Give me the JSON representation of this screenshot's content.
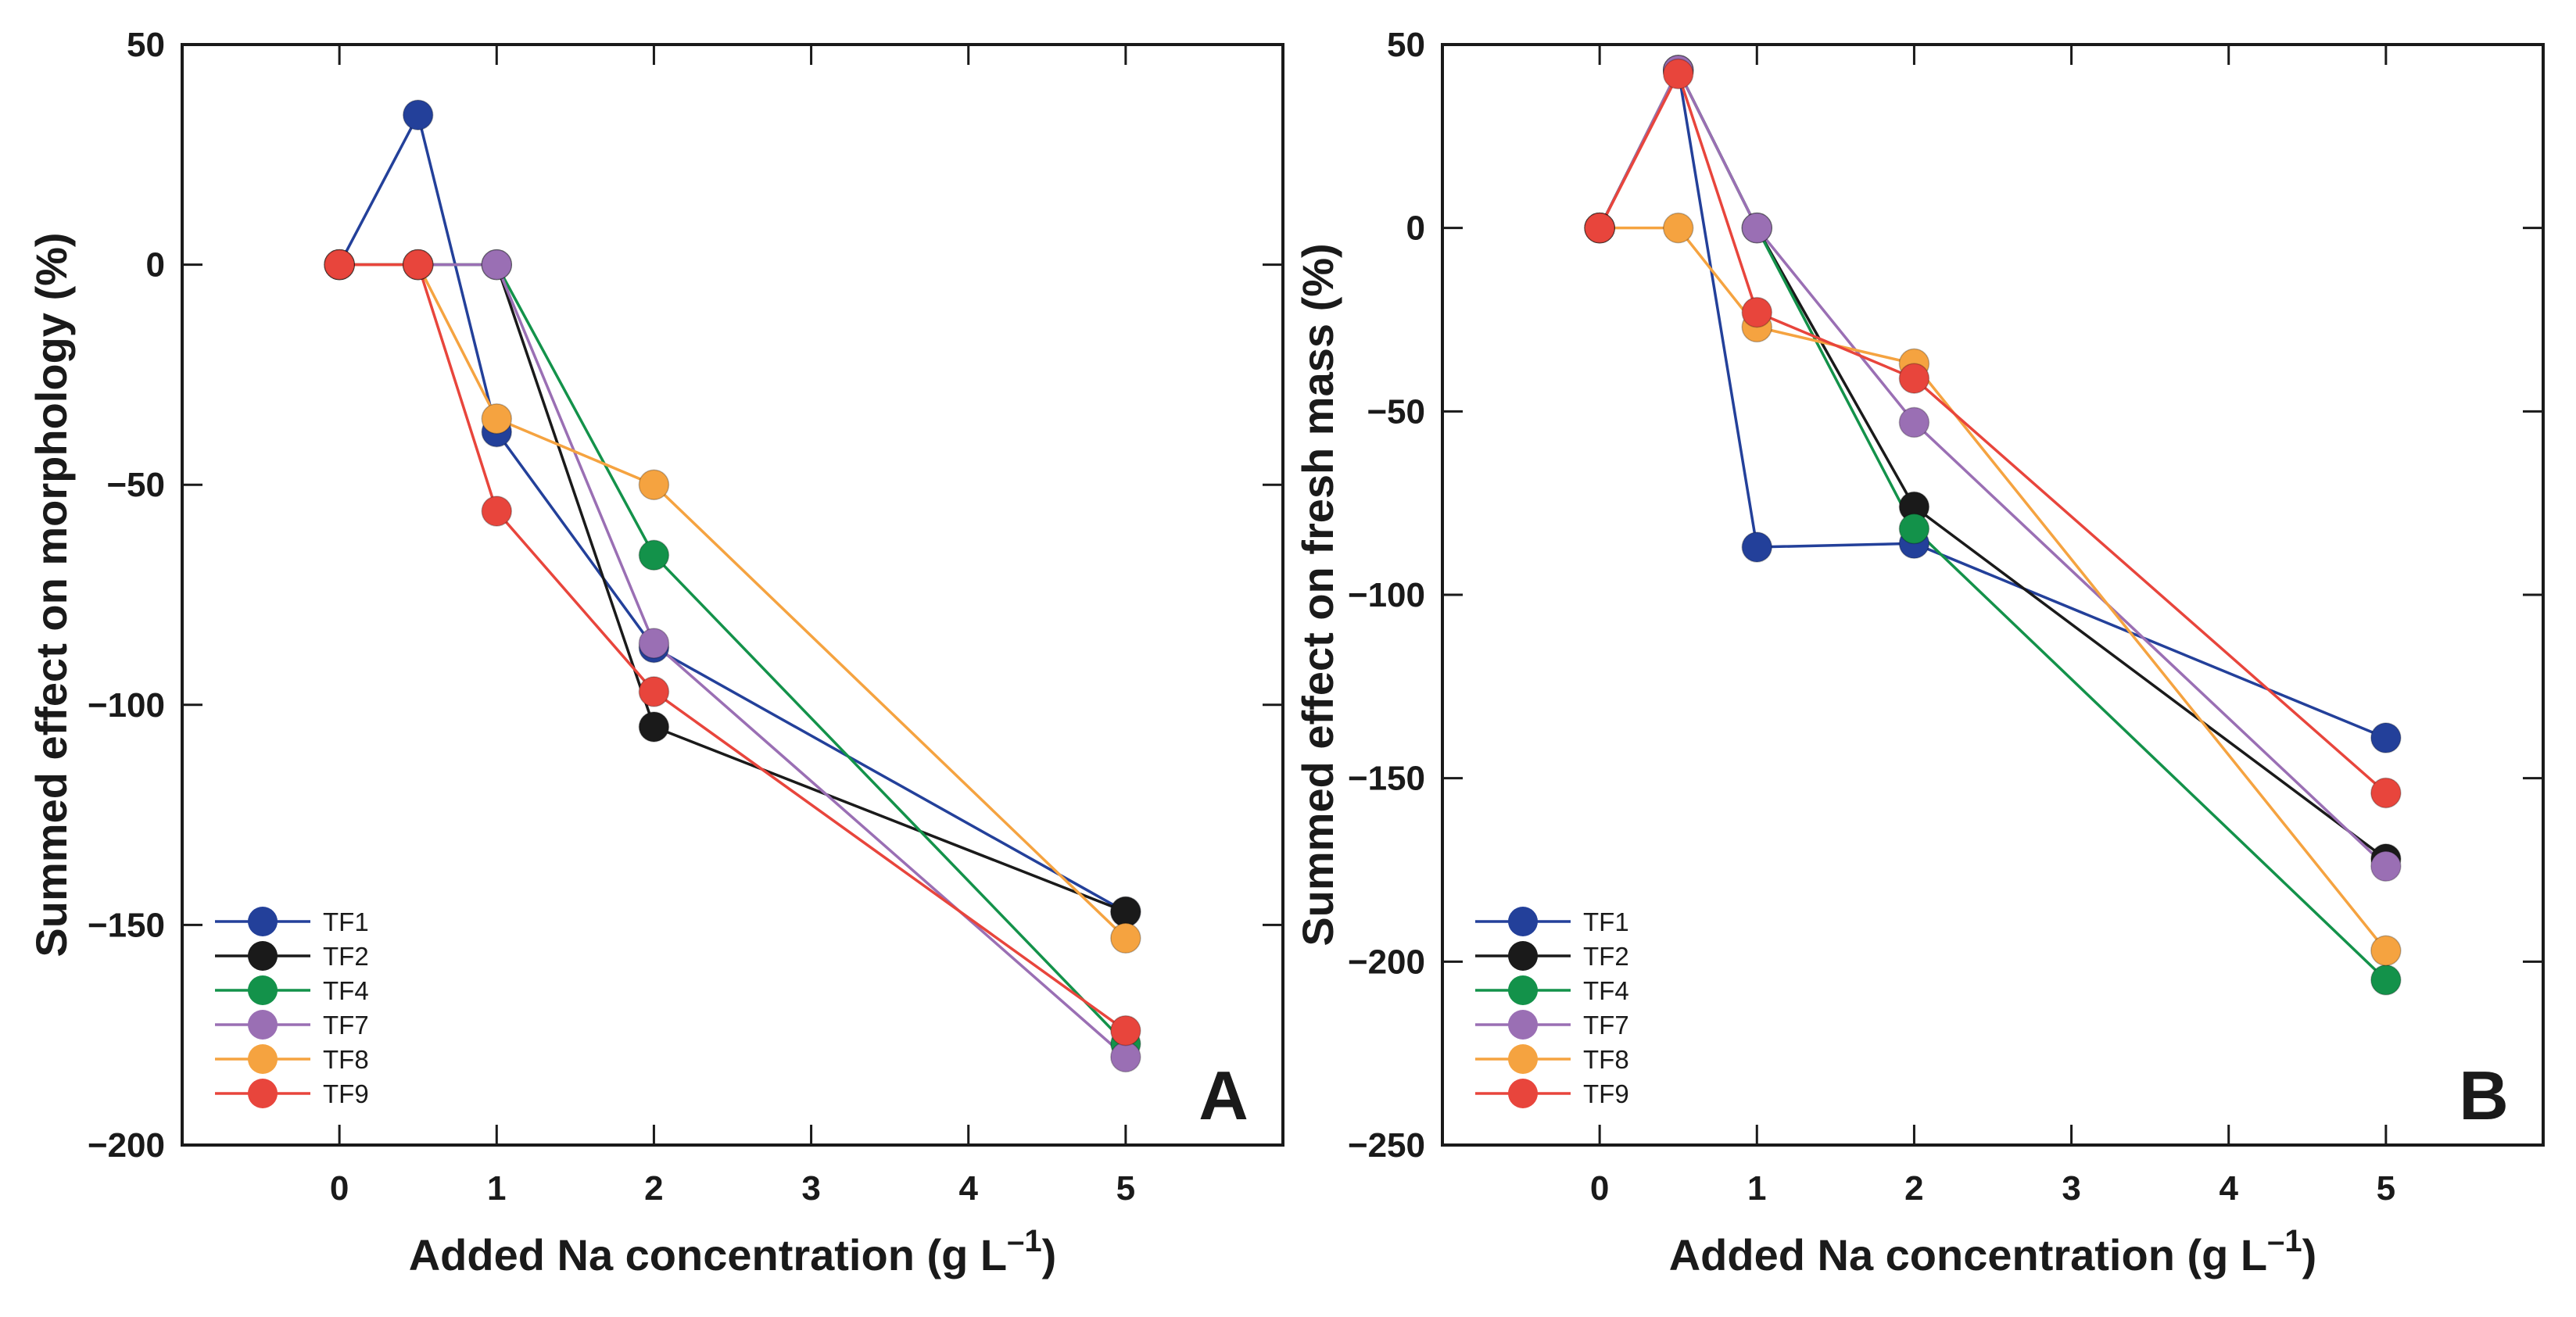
{
  "chart_data": [
    {
      "type": "line",
      "panel": "A",
      "xlabel": "Added Na concentration (g L",
      "xlabel_sup": "–1",
      "xlabel_close": ")",
      "ylabel": "Summed effect on morphology (%)",
      "xlim": [
        -1,
        6
      ],
      "ylim": [
        -200,
        50
      ],
      "xticks": [
        0,
        1,
        2,
        3,
        4,
        5
      ],
      "xtick_labels": [
        "0",
        "1",
        "2",
        "3",
        "4",
        "5"
      ],
      "yticks": [
        50,
        0,
        -50,
        -100,
        -150,
        -200
      ],
      "ytick_labels": [
        "50",
        "0",
        "−50",
        "−100",
        "−150",
        "−200"
      ],
      "legend_position": "bottom-left",
      "series": [
        {
          "name": "TF1",
          "color": "#23409a",
          "x": [
            0,
            0.5,
            1,
            2,
            5
          ],
          "values": [
            0,
            34,
            -38,
            -87,
            -147
          ]
        },
        {
          "name": "TF2",
          "color": "#1a1a1a",
          "x": [
            0,
            0.5,
            1,
            2,
            5
          ],
          "values": [
            0,
            0,
            0,
            -105,
            -147
          ]
        },
        {
          "name": "TF4",
          "color": "#13924a",
          "x": [
            0,
            0.5,
            1,
            2,
            5
          ],
          "values": [
            0,
            0,
            0,
            -66,
            -177
          ]
        },
        {
          "name": "TF7",
          "color": "#9a6fb4",
          "x": [
            0,
            0.5,
            1,
            2,
            5
          ],
          "values": [
            0,
            0,
            0,
            -86,
            -180
          ]
        },
        {
          "name": "TF8",
          "color": "#f5a340",
          "x": [
            0,
            0.5,
            1,
            2,
            5
          ],
          "values": [
            0,
            0,
            -35,
            -50,
            -153
          ]
        },
        {
          "name": "TF9",
          "color": "#e8453c",
          "x": [
            0,
            0.5,
            1,
            2,
            5
          ],
          "values": [
            0,
            0,
            -56,
            -97,
            -174
          ]
        }
      ]
    },
    {
      "type": "line",
      "panel": "B",
      "xlabel": "Added Na concentration (g L",
      "xlabel_sup": "–1",
      "xlabel_close": ")",
      "ylabel": "Summed effect on fresh mass (%)",
      "xlim": [
        -1,
        6
      ],
      "ylim": [
        -250,
        50
      ],
      "xticks": [
        0,
        1,
        2,
        3,
        4,
        5
      ],
      "xtick_labels": [
        "0",
        "1",
        "2",
        "3",
        "4",
        "5"
      ],
      "yticks": [
        50,
        0,
        -50,
        -100,
        -150,
        -200,
        -250
      ],
      "ytick_labels": [
        "50",
        "0",
        "−50",
        "−100",
        "−150",
        "−200",
        "−250"
      ],
      "legend_position": "bottom-left",
      "series": [
        {
          "name": "TF1",
          "color": "#23409a",
          "x": [
            0,
            0.5,
            1,
            2,
            5
          ],
          "values": [
            0,
            43,
            -87,
            -86,
            -139
          ]
        },
        {
          "name": "TF2",
          "color": "#1a1a1a",
          "x": [
            0,
            0.5,
            1,
            2,
            5
          ],
          "values": [
            0,
            43,
            0,
            -76,
            -172
          ]
        },
        {
          "name": "TF4",
          "color": "#13924a",
          "x": [
            0,
            0.5,
            1,
            2,
            5
          ],
          "values": [
            0,
            43,
            0,
            -82,
            -205
          ]
        },
        {
          "name": "TF7",
          "color": "#9a6fb4",
          "x": [
            0,
            0.5,
            1,
            2,
            5
          ],
          "values": [
            0,
            43,
            0,
            -53,
            -174
          ]
        },
        {
          "name": "TF8",
          "color": "#f5a340",
          "x": [
            0,
            0.5,
            1,
            2,
            5
          ],
          "values": [
            0,
            0,
            -27,
            -37,
            -197
          ]
        },
        {
          "name": "TF9",
          "color": "#e8453c",
          "x": [
            0,
            0.5,
            1,
            2,
            5
          ],
          "values": [
            0,
            42,
            -23,
            -41,
            -154
          ]
        }
      ]
    }
  ]
}
